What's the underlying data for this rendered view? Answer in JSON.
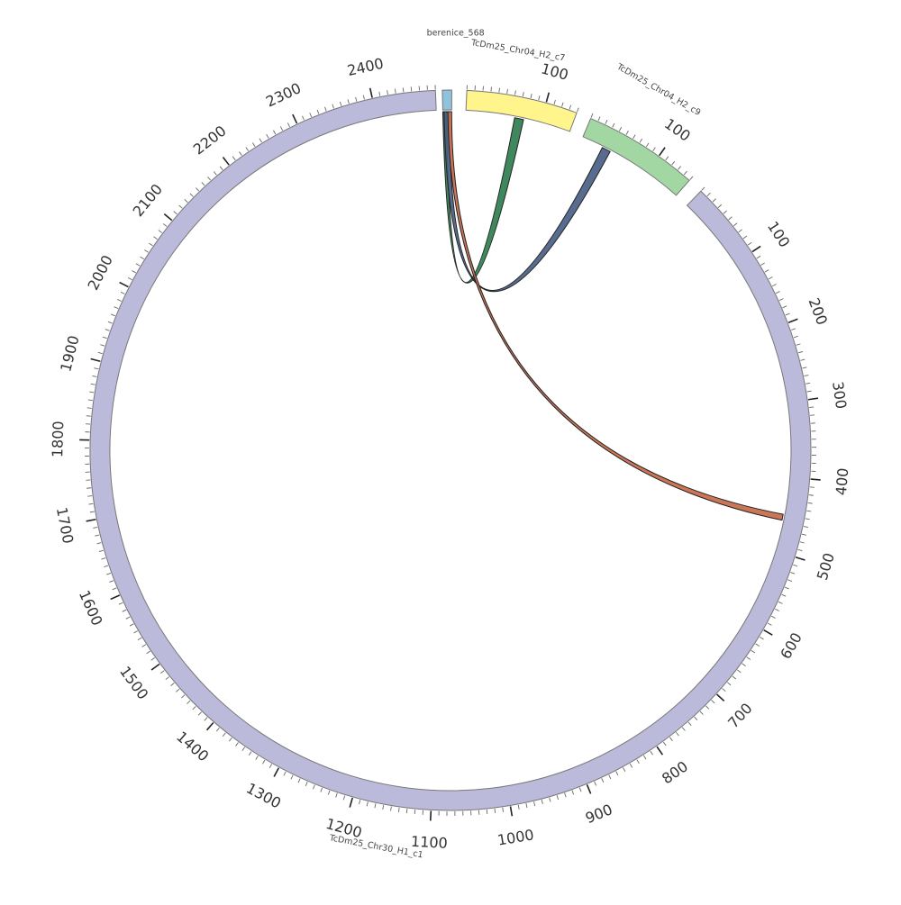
{
  "chart_data": {
    "type": "chord",
    "title": "",
    "segments": [
      {
        "name": "berenice_568",
        "length": 7,
        "color": "#8fc3dd"
      },
      {
        "name": "TcDm25_Chr04_H2_c7",
        "length": 140,
        "color": "#fff58c",
        "ticks": [
          100
        ]
      },
      {
        "name": "TcDm25_Chr04_H2_c9",
        "length": 150,
        "color": "#a2d7a4",
        "ticks": [
          100
        ]
      },
      {
        "name": "TcDm25_Chr30_H1_c1",
        "length": 2480,
        "color": "#bcbadb",
        "ticks": [
          100,
          200,
          300,
          400,
          500,
          600,
          700,
          800,
          900,
          1000,
          1100,
          1200,
          1300,
          1400,
          1500,
          1600,
          1700,
          1800,
          1900,
          2000,
          2100,
          2200,
          2300,
          2400
        ]
      }
    ],
    "links": [
      {
        "from": "berenice_568",
        "from_range": [
          0,
          3
        ],
        "to": "TcDm25_Chr04_H2_c7",
        "to_range": [
          65,
          77
        ],
        "color": "#2f7d4e"
      },
      {
        "from": "berenice_568",
        "from_range": [
          1,
          5
        ],
        "to": "TcDm25_Chr04_H2_c9",
        "to_range": [
          30,
          42
        ],
        "color": "#4a5f86"
      },
      {
        "from": "berenice_568",
        "from_range": [
          4,
          7
        ],
        "to": "TcDm25_Chr30_H1_c1",
        "to_range": [
          450,
          458
        ],
        "color": "#c86a4a"
      }
    ],
    "tick_interval": 10,
    "grid": false,
    "legend": "none"
  }
}
